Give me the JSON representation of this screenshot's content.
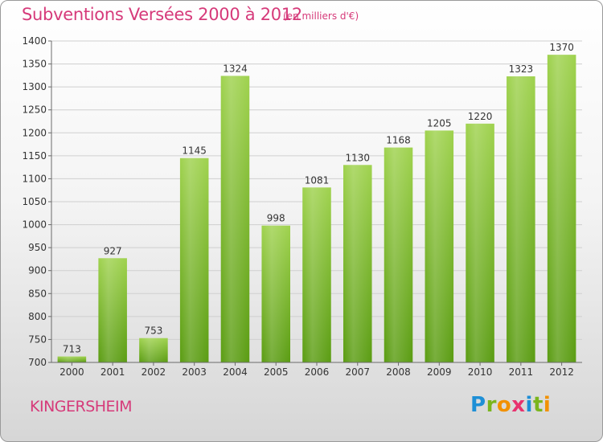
{
  "title": "Subventions Versées 2000 à 2012",
  "subtitle": "(en milliers d'€)",
  "place": "KINGERSHEIM",
  "logo": {
    "letters": [
      "P",
      "r",
      "o",
      "x",
      "i",
      "t",
      "i"
    ],
    "colors": [
      "#1e8fd6",
      "#7ab51d",
      "#f29100",
      "#e8326e",
      "#1e8fd6",
      "#7ab51d",
      "#f29100"
    ]
  },
  "chart_data": {
    "type": "bar",
    "categories": [
      "2000",
      "2001",
      "2002",
      "2003",
      "2004",
      "2005",
      "2006",
      "2007",
      "2008",
      "2009",
      "2010",
      "2011",
      "2012"
    ],
    "values": [
      713,
      927,
      753,
      1145,
      1324,
      998,
      1081,
      1130,
      1168,
      1205,
      1220,
      1323,
      1370
    ],
    "ylim": [
      700,
      1400
    ],
    "yticks": [
      700,
      750,
      800,
      850,
      900,
      950,
      1000,
      1050,
      1100,
      1150,
      1200,
      1250,
      1300,
      1350,
      1400
    ],
    "grid": true,
    "colors": {
      "bar_top": "#9fd24e",
      "bar_bottom": "#5a9c12",
      "grid": "#cfcfcf",
      "axis": "#6b6b6b"
    }
  }
}
